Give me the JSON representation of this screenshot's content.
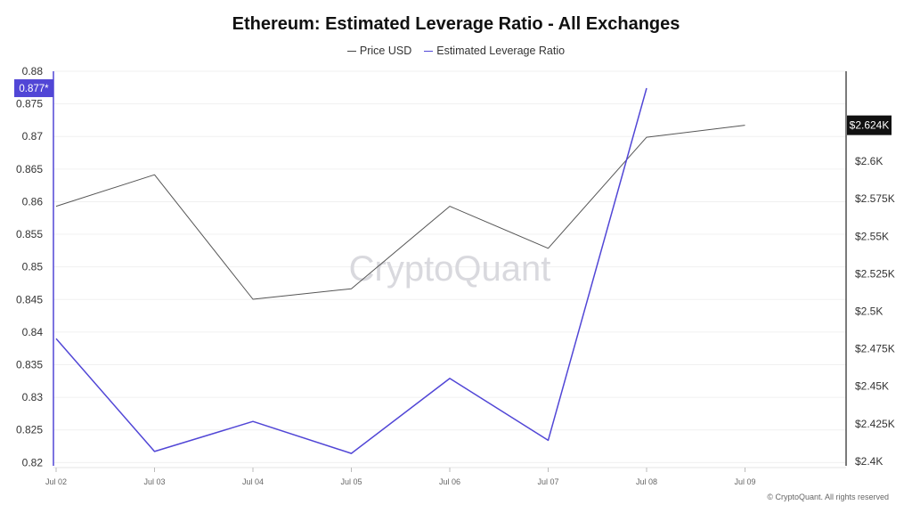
{
  "chart_data": {
    "type": "line",
    "title": "Ethereum: Estimated Leverage Ratio - All Exchanges",
    "categories": [
      "Jul 02",
      "Jul 03",
      "Jul 04",
      "Jul 05",
      "Jul 06",
      "Jul 07",
      "Jul 08",
      "Jul 09"
    ],
    "series": [
      {
        "name": "Price USD",
        "axis": "right",
        "color": "#555555",
        "values": [
          2570,
          2591,
          2508,
          2515,
          2570,
          2542,
          2616,
          2624
        ]
      },
      {
        "name": "Estimated Leverage Ratio",
        "axis": "left",
        "color": "#5146d6",
        "values": [
          0.839,
          0.8217,
          0.8263,
          0.8214,
          0.8329,
          0.8234,
          0.8774,
          null
        ]
      }
    ],
    "left_axis": {
      "ylim": [
        0.8195,
        0.88
      ],
      "ticks": [
        0.88,
        0.875,
        0.87,
        0.865,
        0.86,
        0.855,
        0.85,
        0.845,
        0.84,
        0.835,
        0.83,
        0.825,
        0.82
      ],
      "tick_labels": [
        "0.88",
        "0.875",
        "0.87",
        "0.865",
        "0.86",
        "0.855",
        "0.85",
        "0.845",
        "0.84",
        "0.835",
        "0.83",
        "0.825",
        "0.82"
      ],
      "current_marker": "0.877*",
      "current_value": 0.8774
    },
    "right_axis": {
      "ylim": [
        2397,
        2660
      ],
      "ticks": [
        2600,
        2575,
        2550,
        2525,
        2500,
        2475,
        2450,
        2425,
        2400
      ],
      "tick_labels": [
        "$2.6K",
        "$2.575K",
        "$2.55K",
        "$2.525K",
        "$2.5K",
        "$2.475K",
        "$2.45K",
        "$2.425K",
        "$2.4K"
      ],
      "current_marker": "$2.624K",
      "current_value": 2624
    },
    "grid": true,
    "legend_placement": "top-center"
  },
  "watermark": "CryptoQuant",
  "footer": "© CryptoQuant. All rights reserved"
}
